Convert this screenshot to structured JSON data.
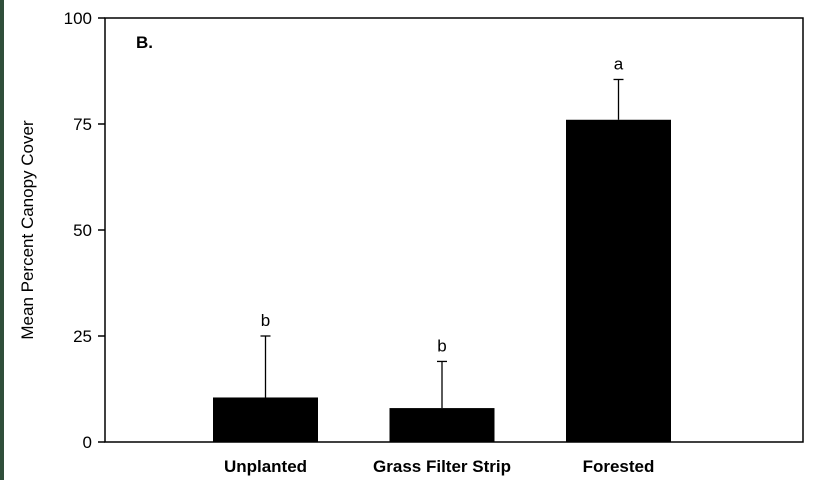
{
  "chart_data": {
    "type": "bar",
    "panel_label": "B.",
    "ylabel": "Mean Percent Canopy Cover",
    "xlabel": "",
    "ylim": [
      0,
      100
    ],
    "yticks": [
      0,
      25,
      50,
      75,
      100
    ],
    "grid": false,
    "categories": [
      "Unplanted",
      "Grass Filter Strip",
      "Forested"
    ],
    "values": [
      10.5,
      8,
      76
    ],
    "error_upper": [
      25,
      19,
      85.5
    ],
    "significance_letters": [
      "b",
      "b",
      "a"
    ],
    "bar_color": "#000000"
  }
}
